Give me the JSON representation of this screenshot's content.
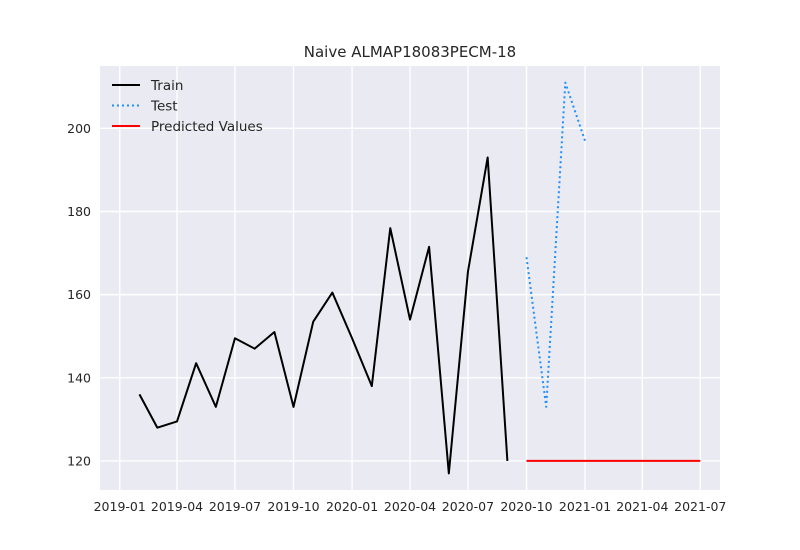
{
  "chart_data": {
    "type": "line",
    "title": "Naive ALMAP18083PECM-18",
    "xlabel": "",
    "ylabel": "",
    "xlim": [
      "2018-12-01",
      "2021-08-01"
    ],
    "ylim": [
      113,
      215
    ],
    "grid": true,
    "legend_position": "top-left",
    "x_ticks": [
      "2019-01",
      "2019-04",
      "2019-07",
      "2019-10",
      "2020-01",
      "2020-04",
      "2020-07",
      "2020-10",
      "2021-01",
      "2021-04",
      "2021-07"
    ],
    "y_ticks": [
      120,
      140,
      160,
      180,
      200
    ],
    "series": [
      {
        "name": "Train",
        "color": "#000000",
        "style": "solid",
        "points": [
          [
            "2019-02-01",
            136
          ],
          [
            "2019-03-01",
            128
          ],
          [
            "2019-04-01",
            129.5
          ],
          [
            "2019-05-01",
            143.5
          ],
          [
            "2019-06-01",
            133
          ],
          [
            "2019-07-01",
            149.5
          ],
          [
            "2019-08-01",
            147
          ],
          [
            "2019-09-01",
            151
          ],
          [
            "2019-10-01",
            133
          ],
          [
            "2019-11-01",
            153.5
          ],
          [
            "2019-12-01",
            160.5
          ],
          [
            "2020-01-01",
            149.5
          ],
          [
            "2020-02-01",
            138
          ],
          [
            "2020-03-01",
            176
          ],
          [
            "2020-04-01",
            154
          ],
          [
            "2020-05-01",
            171.5
          ],
          [
            "2020-06-01",
            117
          ],
          [
            "2020-07-01",
            165.5
          ],
          [
            "2020-08-01",
            193
          ],
          [
            "2020-09-01",
            120
          ]
        ]
      },
      {
        "name": "Test",
        "color": "#1e90ff",
        "style": "dotted",
        "points": [
          [
            "2020-10-01",
            169
          ],
          [
            "2020-11-01",
            133
          ],
          [
            "2020-12-01",
            211
          ],
          [
            "2021-01-01",
            197
          ]
        ]
      },
      {
        "name": "Predicted Values",
        "color": "#ff0000",
        "style": "solid",
        "points": [
          [
            "2020-10-01",
            120
          ],
          [
            "2021-07-01",
            120
          ]
        ]
      }
    ]
  }
}
